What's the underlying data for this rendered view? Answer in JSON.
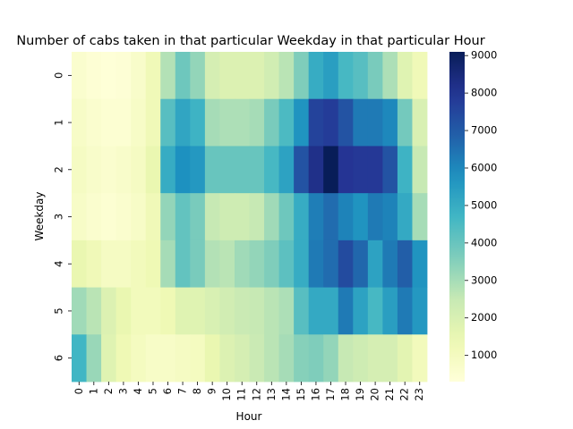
{
  "chart_data": {
    "type": "heatmap",
    "title": "Number of cabs taken in that particular Weekday in that particular Hour",
    "xlabel": "Hour",
    "ylabel": "Weekday",
    "x_categories": [
      "0",
      "1",
      "2",
      "3",
      "4",
      "5",
      "6",
      "7",
      "8",
      "9",
      "10",
      "11",
      "12",
      "13",
      "14",
      "15",
      "16",
      "17",
      "18",
      "19",
      "20",
      "21",
      "22",
      "23"
    ],
    "y_categories": [
      "0",
      "1",
      "2",
      "3",
      "4",
      "5",
      "6"
    ],
    "values": [
      [
        600,
        450,
        350,
        400,
        700,
        1200,
        2800,
        3900,
        3300,
        2100,
        1900,
        1900,
        1900,
        2200,
        2700,
        3600,
        5000,
        5400,
        4600,
        4300,
        3700,
        2900,
        1800,
        1200
      ],
      [
        800,
        600,
        500,
        500,
        800,
        1200,
        4300,
        5200,
        4800,
        3000,
        2900,
        2900,
        3000,
        3700,
        4500,
        5700,
        7600,
        7800,
        7200,
        6300,
        6300,
        6000,
        3800,
        2000
      ],
      [
        900,
        700,
        600,
        700,
        900,
        1500,
        5000,
        5800,
        5600,
        4000,
        4000,
        4000,
        4000,
        4600,
        5300,
        7200,
        8200,
        9100,
        8000,
        7900,
        7900,
        7200,
        4800,
        2500
      ],
      [
        800,
        600,
        500,
        600,
        800,
        1200,
        3300,
        4100,
        3700,
        2500,
        2300,
        2300,
        2500,
        3100,
        3900,
        5000,
        6200,
        6600,
        6100,
        5700,
        6300,
        6100,
        5100,
        3000
      ],
      [
        1500,
        1200,
        900,
        900,
        1100,
        1300,
        3000,
        4100,
        3700,
        2800,
        2700,
        3100,
        3300,
        3600,
        4200,
        5000,
        6300,
        6600,
        7400,
        6700,
        5300,
        6300,
        6900,
        5700
      ],
      [
        3100,
        2700,
        1900,
        1500,
        1100,
        1100,
        1300,
        1800,
        1800,
        2000,
        2200,
        2400,
        2500,
        2700,
        2900,
        4300,
        5100,
        5100,
        6300,
        5300,
        4600,
        5400,
        6300,
        5600
      ],
      [
        4700,
        3200,
        1800,
        1300,
        1000,
        800,
        800,
        900,
        1000,
        1500,
        1900,
        2100,
        2400,
        2700,
        3000,
        3500,
        3600,
        3300,
        2500,
        2300,
        2100,
        2100,
        1700,
        1100
      ]
    ],
    "vmin": 300,
    "vmax": 9100,
    "colormap": "YlGnBu",
    "colorbar_ticks": [
      1000,
      2000,
      3000,
      4000,
      5000,
      6000,
      7000,
      8000,
      9000
    ],
    "grid": false,
    "legend": "colorbar at right"
  }
}
